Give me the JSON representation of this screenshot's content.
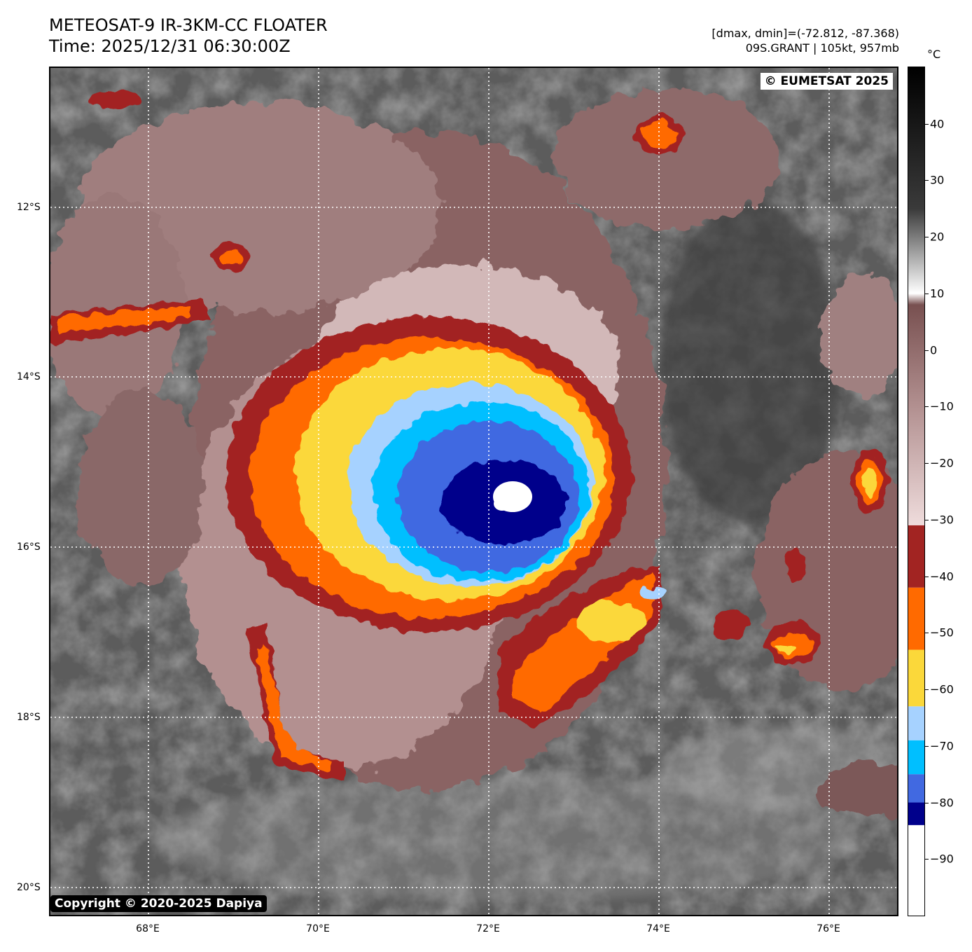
{
  "header": {
    "title": "METEOSAT-9 IR-3KM-CC FLOATER",
    "time": "Time: 2025/12/31 06:30:00Z",
    "dminmax": "[dmax, dmin]=(-72.812, -87.368)",
    "storm": "09S.GRANT | 105kt, 957mb"
  },
  "map": {
    "credit": "© EUMETSAT 2025",
    "copyright": "Copyright © 2020-2025 Dapiya",
    "lon_labels": [
      "68°E",
      "70°E",
      "72°E",
      "74°E",
      "76°E"
    ],
    "lat_labels": [
      "12°S",
      "14°S",
      "16°S",
      "18°S",
      "20°S"
    ],
    "gridline_style": "dotted white",
    "storm_center_note": "eye near 72.3°E, 15.4°S"
  },
  "colorbar": {
    "unit": "°C",
    "ticks": [
      "40",
      "30",
      "20",
      "10",
      "0",
      "−10",
      "−20",
      "−30",
      "−40",
      "−50",
      "−60",
      "−70",
      "−80",
      "−90"
    ],
    "range": [
      -100,
      50
    ],
    "bands": [
      {
        "from": -100,
        "to": -84,
        "color": "#ffffff"
      },
      {
        "from": -84,
        "to": -80,
        "color": "#00008b"
      },
      {
        "from": -80,
        "to": -75,
        "color": "#4169e1"
      },
      {
        "from": -75,
        "to": -69,
        "color": "#00bfff"
      },
      {
        "from": -69,
        "to": -63,
        "color": "#a6d2ff"
      },
      {
        "from": -63,
        "to": -53,
        "color": "#fbd83a"
      },
      {
        "from": -53,
        "to": -42,
        "color": "#ff6a00"
      },
      {
        "from": -42,
        "to": -31,
        "color": "#a22422"
      }
    ],
    "gradient_stops": [
      {
        "value": -31,
        "color": "#efdcdc"
      },
      {
        "value": -10,
        "color": "#b29090"
      },
      {
        "value": 8,
        "color": "#785050"
      },
      {
        "value": 10,
        "color": "#ffffff"
      },
      {
        "value": 25,
        "color": "#3a3a3a"
      },
      {
        "value": 50,
        "color": "#000000"
      }
    ]
  }
}
